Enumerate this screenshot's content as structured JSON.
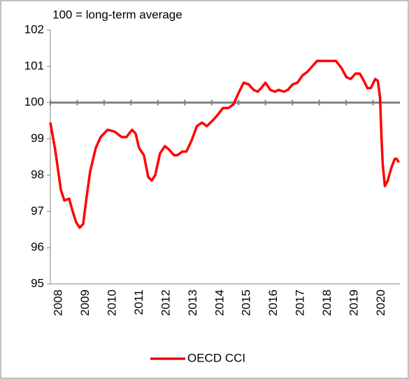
{
  "chart_data": {
    "type": "line",
    "annotation": "100 = long-term average",
    "x": [
      2008.0,
      2008.18,
      2008.39,
      2008.52,
      2008.7,
      2008.83,
      2008.96,
      2009.09,
      2009.22,
      2009.35,
      2009.48,
      2009.69,
      2009.87,
      2010.13,
      2010.39,
      2010.65,
      2010.83,
      2011.04,
      2011.17,
      2011.3,
      2011.48,
      2011.64,
      2011.77,
      2011.9,
      2012.08,
      2012.26,
      2012.42,
      2012.6,
      2012.73,
      2012.91,
      2013.06,
      2013.25,
      2013.45,
      2013.64,
      2013.82,
      2014.03,
      2014.21,
      2014.42,
      2014.62,
      2014.81,
      2014.99,
      2015.19,
      2015.38,
      2015.56,
      2015.71,
      2015.84,
      2016.0,
      2016.18,
      2016.36,
      2016.49,
      2016.68,
      2016.83,
      2017.01,
      2017.19,
      2017.38,
      2017.56,
      2017.74,
      2017.92,
      2018.1,
      2018.26,
      2018.44,
      2018.62,
      2018.83,
      2019.01,
      2019.17,
      2019.35,
      2019.51,
      2019.66,
      2019.79,
      2019.92,
      2020.08,
      2020.18,
      2020.26,
      2020.31,
      2020.36,
      2020.44,
      2020.55,
      2020.68,
      2020.81,
      2020.88,
      2020.96
    ],
    "series": [
      {
        "name": "OECD CCI",
        "color": "#ff0000",
        "values": [
          99.45,
          98.7,
          97.6,
          97.3,
          97.35,
          97.0,
          96.7,
          96.55,
          96.65,
          97.4,
          98.1,
          98.75,
          99.05,
          99.25,
          99.2,
          99.05,
          99.05,
          99.25,
          99.15,
          98.75,
          98.55,
          97.95,
          97.85,
          98.0,
          98.6,
          98.8,
          98.7,
          98.55,
          98.55,
          98.65,
          98.65,
          98.95,
          99.35,
          99.45,
          99.35,
          99.5,
          99.65,
          99.85,
          99.85,
          99.95,
          100.25,
          100.55,
          100.5,
          100.35,
          100.3,
          100.4,
          100.55,
          100.35,
          100.3,
          100.35,
          100.3,
          100.35,
          100.5,
          100.55,
          100.75,
          100.85,
          101.0,
          101.15,
          101.15,
          101.15,
          101.15,
          101.15,
          100.95,
          100.7,
          100.65,
          100.8,
          100.8,
          100.6,
          100.4,
          100.4,
          100.65,
          100.6,
          100.15,
          99.15,
          98.3,
          97.7,
          97.85,
          98.2,
          98.45,
          98.45,
          98.35
        ]
      }
    ],
    "xlim": [
      2008,
      2021
    ],
    "xticks": [
      2008,
      2009,
      2010,
      2011,
      2012,
      2013,
      2014,
      2015,
      2016,
      2017,
      2018,
      2019,
      2020
    ],
    "ylim": [
      95,
      102
    ],
    "yticks": [
      95,
      96,
      97,
      98,
      99,
      100,
      101,
      102
    ],
    "reference_line": 100,
    "grid": false,
    "legend": "bottom"
  }
}
